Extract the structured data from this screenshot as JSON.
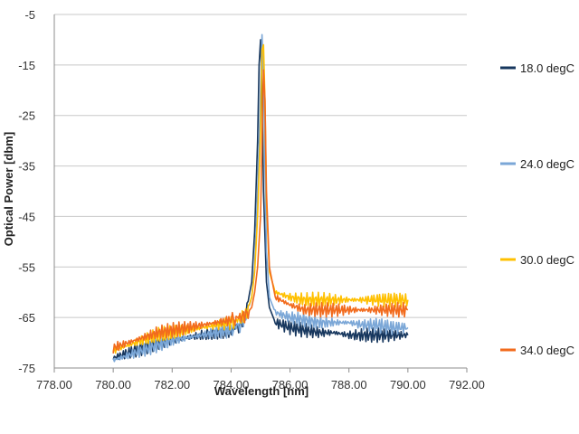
{
  "chart_data": {
    "type": "line",
    "title": "",
    "xlabel": "Wavelength [nm]",
    "ylabel": "Optical Power [dbm]",
    "xlim": [
      778,
      792
    ],
    "ylim": [
      -75,
      -5
    ],
    "x_ticks": [
      "778.00",
      "780.00",
      "782.00",
      "784.00",
      "786.00",
      "788.00",
      "790.00",
      "792.00"
    ],
    "y_ticks": [
      "-5",
      "-15",
      "-25",
      "-35",
      "-45",
      "-55",
      "-65",
      "-75"
    ],
    "grid": "horizontal",
    "legend_position": "right",
    "series": [
      {
        "name": "18.0 degC",
        "color": "#17375e",
        "x": [
          780.0,
          780.5,
          781.0,
          781.5,
          782.0,
          782.5,
          783.0,
          783.5,
          784.0,
          784.3,
          784.5,
          784.7,
          784.8,
          784.9,
          784.95,
          785.0,
          785.05,
          785.1,
          785.2,
          785.3,
          785.5,
          786.0,
          786.5,
          787.0,
          787.5,
          788.0,
          788.5,
          789.0,
          789.5,
          790.0
        ],
        "values": [
          -73,
          -72,
          -71,
          -70,
          -69.5,
          -69,
          -68.5,
          -68,
          -67.5,
          -66.5,
          -64,
          -58,
          -48,
          -30,
          -15,
          -10,
          -20,
          -40,
          -58,
          -63,
          -66,
          -67,
          -67.5,
          -68,
          -68,
          -68.5,
          -68.5,
          -68.5,
          -68.5,
          -68.5
        ]
      },
      {
        "name": "24.0 degC",
        "color": "#7ba7d7",
        "x": [
          780.0,
          780.5,
          781.0,
          781.5,
          782.0,
          782.5,
          783.0,
          783.5,
          784.0,
          784.3,
          784.5,
          784.7,
          784.8,
          784.9,
          785.0,
          785.05,
          785.1,
          785.15,
          785.2,
          785.3,
          785.5,
          786.0,
          786.5,
          787.0,
          787.5,
          788.0,
          788.5,
          789.0,
          789.5,
          790.0
        ],
        "values": [
          -73.5,
          -72.5,
          -71.5,
          -70.5,
          -69.5,
          -69,
          -68.5,
          -68,
          -67.5,
          -66.5,
          -65,
          -61,
          -55,
          -40,
          -20,
          -9,
          -18,
          -35,
          -52,
          -61,
          -64,
          -65,
          -65.5,
          -66,
          -66,
          -66,
          -66.5,
          -66.5,
          -67,
          -67
        ]
      },
      {
        "name": "30.0 degC",
        "color": "#ffc000",
        "x": [
          780.0,
          780.5,
          781.0,
          781.5,
          782.0,
          782.5,
          783.0,
          783.5,
          784.0,
          784.3,
          784.5,
          784.7,
          784.8,
          784.9,
          785.0,
          785.05,
          785.1,
          785.15,
          785.2,
          785.3,
          785.5,
          786.0,
          786.5,
          787.0,
          787.5,
          788.0,
          788.5,
          789.0,
          789.5,
          790.0
        ],
        "values": [
          -71.5,
          -70.5,
          -69.5,
          -68.5,
          -68,
          -67.5,
          -67,
          -66.5,
          -66,
          -65.5,
          -64.5,
          -61,
          -56,
          -45,
          -28,
          -12,
          -11,
          -22,
          -42,
          -56,
          -60,
          -61,
          -61.5,
          -61.5,
          -61.5,
          -61.5,
          -61.5,
          -61.5,
          -61.5,
          -61.5
        ]
      },
      {
        "name": "34.0 degC",
        "color": "#f26b1d",
        "x": [
          780.0,
          780.5,
          781.0,
          781.5,
          782.0,
          782.5,
          783.0,
          783.5,
          784.0,
          784.3,
          784.5,
          784.7,
          784.8,
          784.9,
          785.0,
          785.05,
          785.1,
          785.15,
          785.2,
          785.3,
          785.5,
          786.0,
          786.5,
          787.0,
          787.5,
          788.0,
          788.5,
          789.0,
          789.5,
          790.0
        ],
        "values": [
          -71,
          -70,
          -69,
          -68,
          -67.5,
          -67,
          -66.5,
          -66,
          -65.5,
          -65,
          -64.5,
          -63,
          -60,
          -55,
          -45,
          -30,
          -16,
          -22,
          -40,
          -55,
          -61,
          -62.5,
          -63.5,
          -63.5,
          -63.5,
          -63.5,
          -63.5,
          -63.5,
          -63.5,
          -63.5
        ]
      }
    ]
  }
}
